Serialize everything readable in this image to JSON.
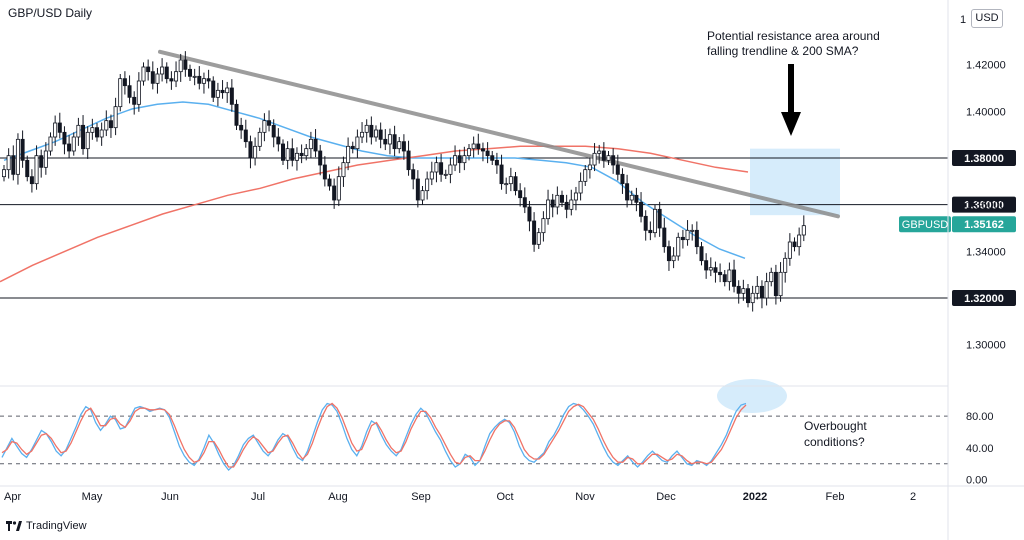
{
  "header": {
    "title": "GBP/USD Daily",
    "currency": "USD"
  },
  "footer": {
    "brand": "TradingView"
  },
  "colors": {
    "sma50": "#5ab0ef",
    "sma200": "#f07367",
    "trendline": "#8c8c8c",
    "up": "#131722",
    "down": "#131722",
    "box": "#d6ecfb"
  },
  "chart_data": [
    {
      "type": "candlestick",
      "title": "GBP/USD Daily",
      "ylim": [
        1.29,
        1.44
      ],
      "yticks": [
        "1.42000",
        "1.40000",
        "1.36000",
        "1.34000",
        "1.30000"
      ],
      "ytick_values": [
        1.42,
        1.4,
        1.36,
        1.34,
        1.3
      ],
      "ytick_top_label": "1",
      "months": [
        "Apr",
        "May",
        "Jun",
        "Jul",
        "Aug",
        "Sep",
        "Oct",
        "Nov",
        "Dec",
        "2022",
        "Feb",
        "2"
      ],
      "horizontal_levels": [
        {
          "value": 1.38,
          "label": "1.38000"
        },
        {
          "value": 1.36,
          "label": "1.36000"
        },
        {
          "value": 1.32,
          "label": "1.32000"
        }
      ],
      "current_price": {
        "symbol": "GBPUSD",
        "value": 1.35162,
        "label": "1.35162"
      },
      "trendline": {
        "from": {
          "month": "Jun",
          "price": 1.4255
        },
        "to": {
          "month": "Feb",
          "price": 1.355
        }
      },
      "resistance_box": {
        "price_top": 1.384,
        "price_bottom": 1.3555
      },
      "annotations": [
        {
          "text": "Potential resistance area around",
          "line2": "falling trendline & 200 SMA?"
        },
        {
          "text": "Overbought",
          "line2": "conditions?"
        }
      ],
      "close": [
        1.375,
        1.381,
        1.373,
        1.388,
        1.379,
        1.372,
        1.369,
        1.381,
        1.376,
        1.383,
        1.389,
        1.395,
        1.391,
        1.386,
        1.383,
        1.389,
        1.394,
        1.384,
        1.391,
        1.393,
        1.389,
        1.392,
        1.396,
        1.393,
        1.402,
        1.414,
        1.411,
        1.406,
        1.403,
        1.413,
        1.419,
        1.417,
        1.412,
        1.416,
        1.419,
        1.414,
        1.413,
        1.417,
        1.422,
        1.418,
        1.415,
        1.415,
        1.412,
        1.414,
        1.413,
        1.406,
        1.409,
        1.408,
        1.41,
        1.403,
        1.394,
        1.392,
        1.387,
        1.38,
        1.385,
        1.391,
        1.396,
        1.394,
        1.389,
        1.386,
        1.379,
        1.384,
        1.379,
        1.382,
        1.381,
        1.384,
        1.388,
        1.383,
        1.377,
        1.371,
        1.368,
        1.362,
        1.372,
        1.378,
        1.385,
        1.384,
        1.389,
        1.391,
        1.394,
        1.389,
        1.392,
        1.388,
        1.386,
        1.39,
        1.384,
        1.387,
        1.383,
        1.375,
        1.371,
        1.362,
        1.366,
        1.371,
        1.374,
        1.378,
        1.373,
        1.373,
        1.377,
        1.381,
        1.378,
        1.381,
        1.384,
        1.386,
        1.384,
        1.383,
        1.381,
        1.379,
        1.377,
        1.369,
        1.369,
        1.372,
        1.366,
        1.363,
        1.359,
        1.353,
        1.343,
        1.348,
        1.354,
        1.362,
        1.359,
        1.364,
        1.361,
        1.358,
        1.362,
        1.365,
        1.37,
        1.375,
        1.377,
        1.382,
        1.383,
        1.379,
        1.381,
        1.377,
        1.373,
        1.369,
        1.362,
        1.364,
        1.361,
        1.355,
        1.349,
        1.348,
        1.358,
        1.35,
        1.342,
        1.336,
        1.338,
        1.346,
        1.345,
        1.349,
        1.349,
        1.342,
        1.336,
        1.332,
        1.333,
        1.331,
        1.33,
        1.327,
        1.332,
        1.325,
        1.322,
        1.324,
        1.318,
        1.322,
        1.325,
        1.32,
        1.327,
        1.331,
        1.321,
        1.331,
        1.337,
        1.344,
        1.342,
        1.347,
        1.351
      ],
      "sma50": [
        1.379,
        1.383,
        1.387,
        1.392,
        1.397,
        1.401,
        1.403,
        1.404,
        1.403,
        1.4,
        1.397,
        1.393,
        1.389,
        1.386,
        1.383,
        1.381,
        1.38,
        1.38,
        1.38,
        1.38,
        1.38,
        1.379,
        1.378,
        1.376,
        1.37,
        1.361,
        1.354,
        1.347,
        1.341,
        1.337
      ],
      "sma200": [
        1.327,
        1.334,
        1.34,
        1.346,
        1.351,
        1.356,
        1.36,
        1.364,
        1.367,
        1.371,
        1.374,
        1.377,
        1.379,
        1.381,
        1.383,
        1.384,
        1.385,
        1.385,
        1.385,
        1.384,
        1.382,
        1.379,
        1.376,
        1.374
      ],
      "sub_chart": {
        "type": "line",
        "yticks": [
          "80.00",
          "40.00",
          "0.00"
        ],
        "ytick_values": [
          80,
          40,
          0
        ],
        "ylim": [
          -8,
          118
        ],
        "levels": [
          80,
          20
        ],
        "series": [
          {
            "values": [
              28,
              40,
              52,
              42,
              33,
              28,
              38,
              50,
              62,
              58,
              48,
              36,
              30,
              38,
              52,
              66,
              82,
              92,
              88,
              72,
              62,
              70,
              80,
              76,
              64,
              66,
              78,
              90,
              92,
              90,
              86,
              88,
              90,
              88,
              78,
              60,
              42,
              30,
              22,
              18,
              26,
              40,
              56,
              46,
              32,
              20,
              12,
              18,
              30,
              44,
              52,
              56,
              46,
              36,
              30,
              38,
              50,
              58,
              54,
              40,
              28,
              24,
              36,
              54,
              72,
              88,
              96,
              94,
              86,
              70,
              52,
              38,
              30,
              42,
              60,
              74,
              70,
              56,
              44,
              36,
              30,
              38,
              54,
              70,
              82,
              90,
              84,
              72,
              60,
              50,
              36,
              24,
              16,
              20,
              32,
              28,
              18,
              24,
              42,
              58,
              66,
              72,
              76,
              72,
              60,
              42,
              30,
              24,
              22,
              28,
              34,
              48,
              56,
              68,
              82,
              92,
              96,
              94,
              88,
              80,
              70,
              56,
              42,
              30,
              22,
              18,
              24,
              30,
              22,
              16,
              22,
              30,
              36,
              30,
              24,
              22,
              30,
              36,
              28,
              20,
              18,
              24,
              22,
              18,
              24,
              34,
              44,
              56,
              72,
              86,
              94,
              96
            ]
          },
          {
            "values": [
              34,
              38,
              48,
              46,
              38,
              32,
              36,
              46,
              56,
              58,
              52,
              42,
              34,
              36,
              46,
              60,
              74,
              86,
              90,
              80,
              68,
              68,
              76,
              78,
              70,
              66,
              74,
              86,
              90,
              90,
              88,
              88,
              89,
              88,
              82,
              68,
              52,
              38,
              28,
              22,
              24,
              34,
              48,
              48,
              38,
              26,
              16,
              16,
              26,
              38,
              48,
              54,
              50,
              42,
              34,
              36,
              46,
              54,
              56,
              46,
              34,
              26,
              32,
              46,
              64,
              80,
              92,
              96,
              90,
              78,
              62,
              46,
              36,
              38,
              52,
              68,
              72,
              62,
              50,
              40,
              34,
              36,
              48,
              64,
              76,
              86,
              86,
              78,
              66,
              56,
              44,
              32,
              22,
              20,
              28,
              30,
              24,
              24,
              36,
              50,
              62,
              70,
              74,
              74,
              66,
              52,
              38,
              30,
              26,
              26,
              32,
              42,
              52,
              62,
              74,
              86,
              92,
              95,
              92,
              84,
              76,
              64,
              50,
              38,
              28,
              22,
              22,
              28,
              26,
              20,
              20,
              26,
              32,
              32,
              28,
              24,
              26,
              32,
              30,
              24,
              20,
              22,
              22,
              20,
              22,
              30,
              38,
              50,
              64,
              78,
              88,
              94
            ]
          }
        ]
      }
    }
  ]
}
